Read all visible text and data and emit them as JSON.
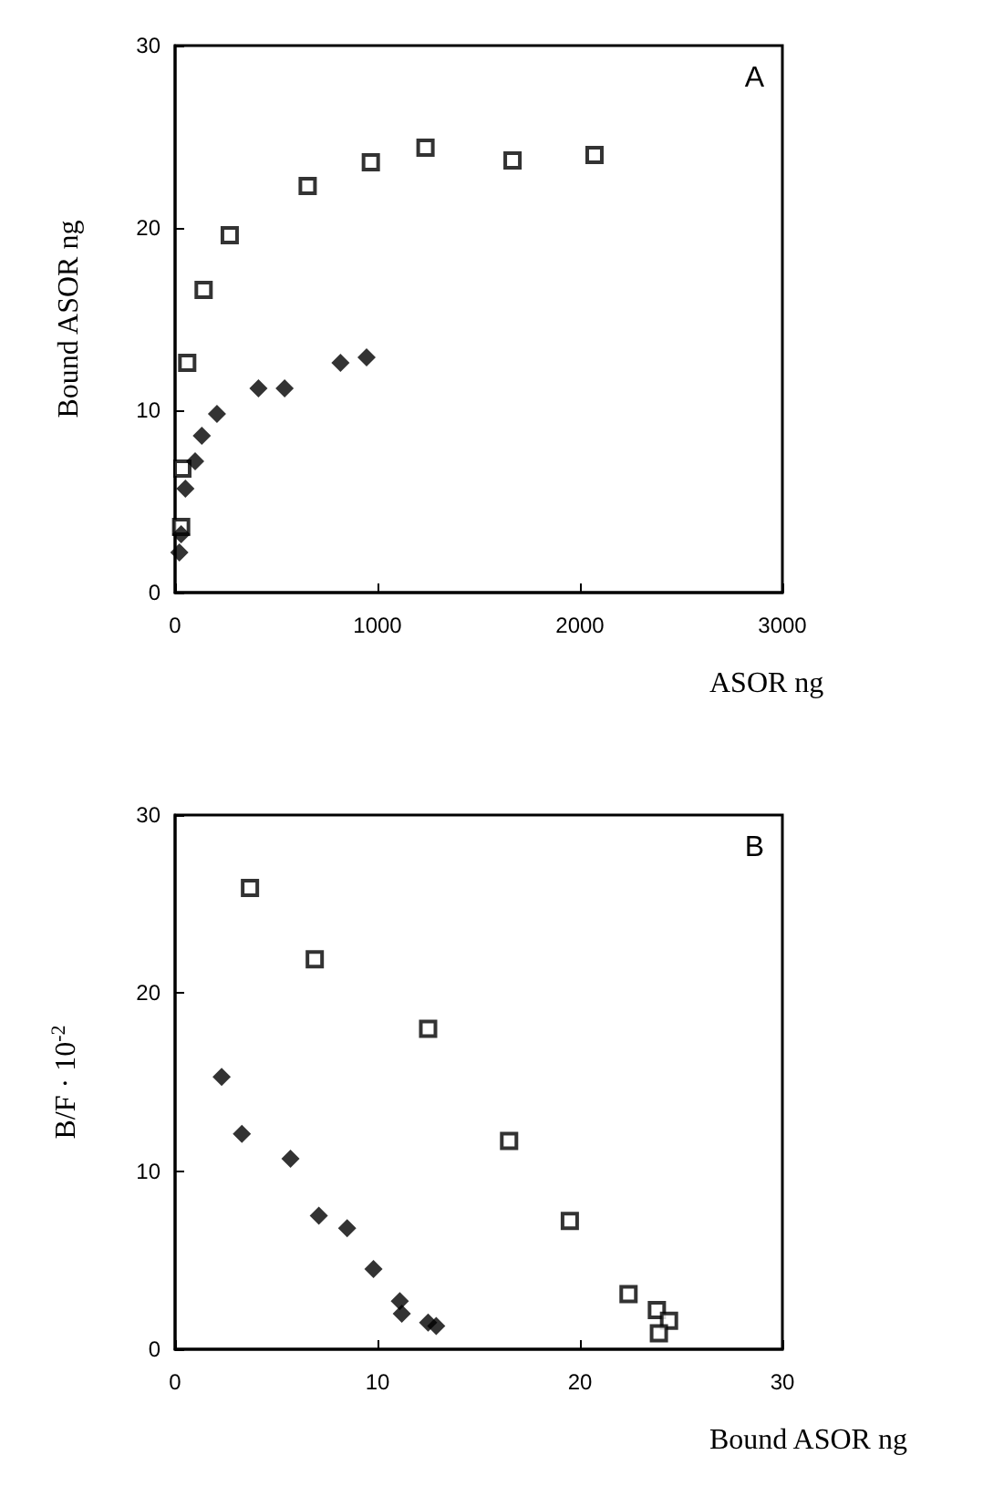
{
  "chart_data": [
    {
      "type": "scatter",
      "ylabel": "Bound ASOR ng",
      "xlabel": "ASOR ng",
      "annotations": [
        "A"
      ],
      "xlim": [
        0,
        3000
      ],
      "xticks": [
        0,
        1000,
        2000,
        3000
      ],
      "ylim": [
        0,
        30
      ],
      "yticks": [
        0,
        10,
        20,
        30
      ],
      "series": [
        {
          "color": "#000000",
          "marker": "square",
          "x": [
            30,
            36,
            60,
            141,
            270,
            655,
            967,
            1237,
            1667,
            2072
          ],
          "values": [
            3.6,
            6.8,
            12.6,
            16.6,
            19.6,
            22.3,
            23.6,
            24.4,
            23.7,
            24.0
          ]
        },
        {
          "color": "#000000",
          "marker": "diamond",
          "x": [
            21,
            30,
            51,
            99,
            132,
            207,
            412,
            541,
            817,
            946
          ],
          "values": [
            2.2,
            3.2,
            5.7,
            7.2,
            8.6,
            9.8,
            11.2,
            11.2,
            12.6,
            12.9
          ]
        }
      ]
    },
    {
      "type": "scatter",
      "ylabel": "B/F · 10$^{-2}$",
      "xlabel": "Bound ASOR ng",
      "annotations": [
        "B"
      ],
      "xlim": [
        0,
        30
      ],
      "xticks": [
        0,
        10,
        20,
        30
      ],
      "ylim": [
        0,
        30
      ],
      "yticks": [
        0,
        10,
        20,
        30
      ],
      "series": [
        {
          "color": "#000000",
          "marker": "square",
          "x": [
            3.7,
            6.9,
            12.5,
            16.5,
            19.5,
            22.4,
            23.8,
            24.4,
            23.9
          ],
          "values": [
            25.9,
            21.9,
            18.0,
            11.7,
            7.2,
            3.1,
            2.2,
            1.6,
            0.9
          ]
        },
        {
          "color": "#000000",
          "marker": "diamond",
          "x": [
            2.3,
            3.3,
            5.7,
            7.1,
            8.5,
            9.8,
            11.1,
            11.2,
            12.5,
            12.9
          ],
          "values": [
            15.3,
            12.1,
            10.7,
            7.5,
            6.8,
            4.5,
            2.7,
            2.0,
            1.5,
            1.3
          ]
        }
      ]
    }
  ]
}
